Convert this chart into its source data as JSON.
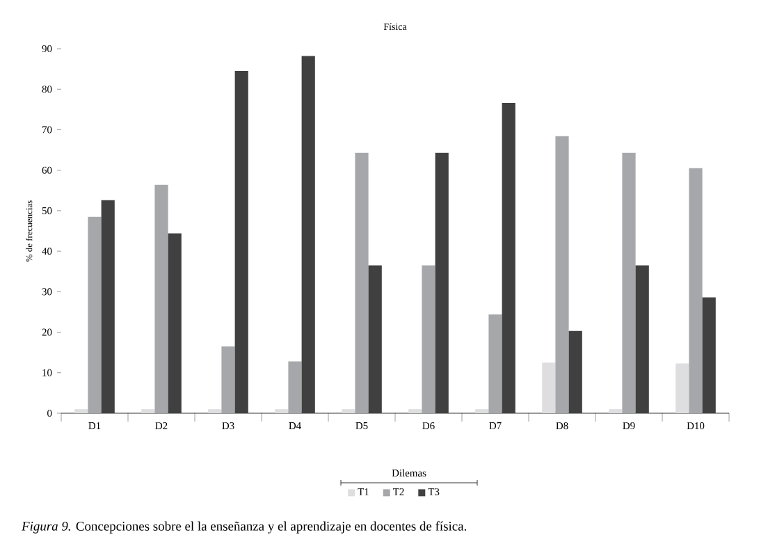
{
  "chart_data": {
    "type": "bar",
    "title": "Física",
    "ylabel": "% de frecuencias",
    "legend_title": "Dilemas",
    "categories": [
      "D1",
      "D2",
      "D3",
      "D4",
      "D5",
      "D6",
      "D7",
      "D8",
      "D9",
      "D10"
    ],
    "series": [
      {
        "name": "T1",
        "color": "#dedee0",
        "values": [
          1,
          1,
          1,
          1,
          1,
          1,
          1,
          12.5,
          1,
          12.3
        ]
      },
      {
        "name": "T2",
        "color": "#a6a7aa",
        "values": [
          48.5,
          56.4,
          16.5,
          12.8,
          64.3,
          36.5,
          24.4,
          68.4,
          64.3,
          60.5
        ]
      },
      {
        "name": "T3",
        "color": "#404040",
        "values": [
          52.6,
          44.4,
          84.5,
          88.2,
          36.5,
          64.3,
          76.6,
          20.3,
          36.5,
          28.6
        ]
      }
    ],
    "ylim": [
      0,
      90
    ],
    "yticks": [
      0,
      10,
      20,
      30,
      40,
      50,
      60,
      70,
      80,
      90
    ],
    "grid": false,
    "legend": "bottom",
    "annotations": [
      "*Figura 9.* Concepciones sobre el la enseñanza y el aprendizaje en docentes de física."
    ]
  }
}
